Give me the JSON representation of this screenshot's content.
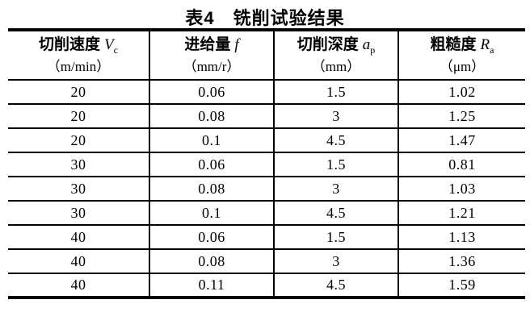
{
  "title": "表4　铣削试验结果",
  "table": {
    "columns": [
      {
        "label": "切削速度",
        "var": "V",
        "sub": "c",
        "unit": "（m/min）"
      },
      {
        "label": "进给量",
        "var": "f",
        "sub": "",
        "unit": "（mm/r）"
      },
      {
        "label": "切削深度",
        "var": "a",
        "sub": "p",
        "unit": "（mm）"
      },
      {
        "label": "粗糙度",
        "var": "R",
        "sub": "a",
        "unit": "（μm）"
      }
    ],
    "rows": [
      [
        "20",
        "0.06",
        "1.5",
        "1.02"
      ],
      [
        "20",
        "0.08",
        "3",
        "1.25"
      ],
      [
        "20",
        "0.1",
        "4.5",
        "1.47"
      ],
      [
        "30",
        "0.06",
        "1.5",
        "0.81"
      ],
      [
        "30",
        "0.08",
        "3",
        "1.03"
      ],
      [
        "30",
        "0.1",
        "4.5",
        "1.21"
      ],
      [
        "40",
        "0.06",
        "1.5",
        "1.13"
      ],
      [
        "40",
        "0.08",
        "3",
        "1.36"
      ],
      [
        "40",
        "0.11",
        "4.5",
        "1.59"
      ]
    ]
  },
  "colors": {
    "text": "#000000",
    "border": "#000000",
    "background": "#ffffff"
  }
}
